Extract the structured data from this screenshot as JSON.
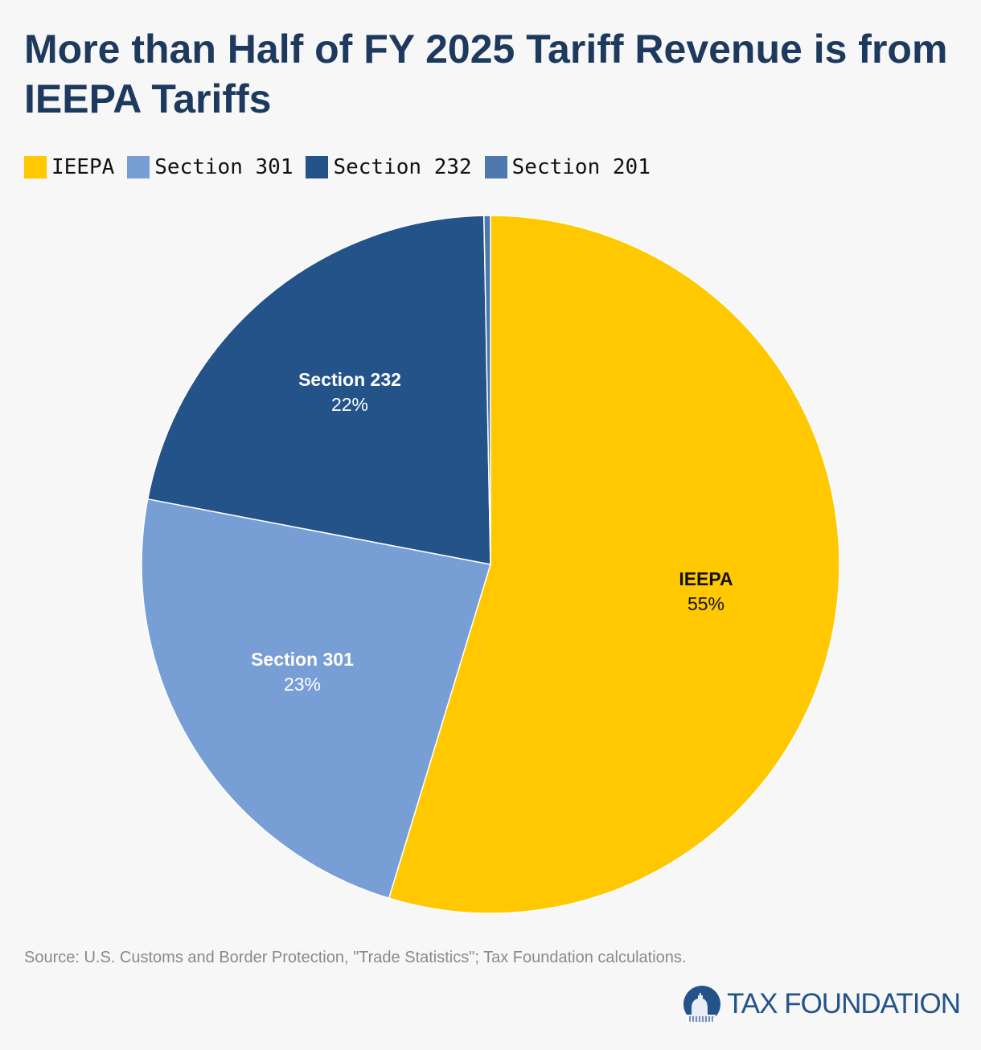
{
  "title": "More than Half of FY 2025 Tariff Revenue is from IEEPA Tariffs",
  "source": "Source: U.S. Customs and Border Protection, \"Trade Statistics\"; Tax Foundation calculations.",
  "logo_text": "TAX FOUNDATION",
  "chart_data": {
    "type": "pie",
    "title": "More than Half of FY 2025 Tariff Revenue is from IEEPA Tariffs",
    "legend_position": "top-left",
    "start": "top, clockwise",
    "slices": [
      {
        "name": "IEEPA",
        "value": 54.7,
        "label": "55%",
        "color": "#ffc800",
        "label_color": "#111111"
      },
      {
        "name": "Section 301",
        "value": 23.3,
        "label": "23%",
        "color": "#789ed6",
        "label_color": "#ffffff"
      },
      {
        "name": "Section 232",
        "value": 21.7,
        "label": "22%",
        "color": "#24538a",
        "label_color": "#ffffff"
      },
      {
        "name": "Section 201",
        "value": 0.3,
        "label": "",
        "color": "#4c78ae",
        "label_color": "#ffffff"
      }
    ]
  }
}
